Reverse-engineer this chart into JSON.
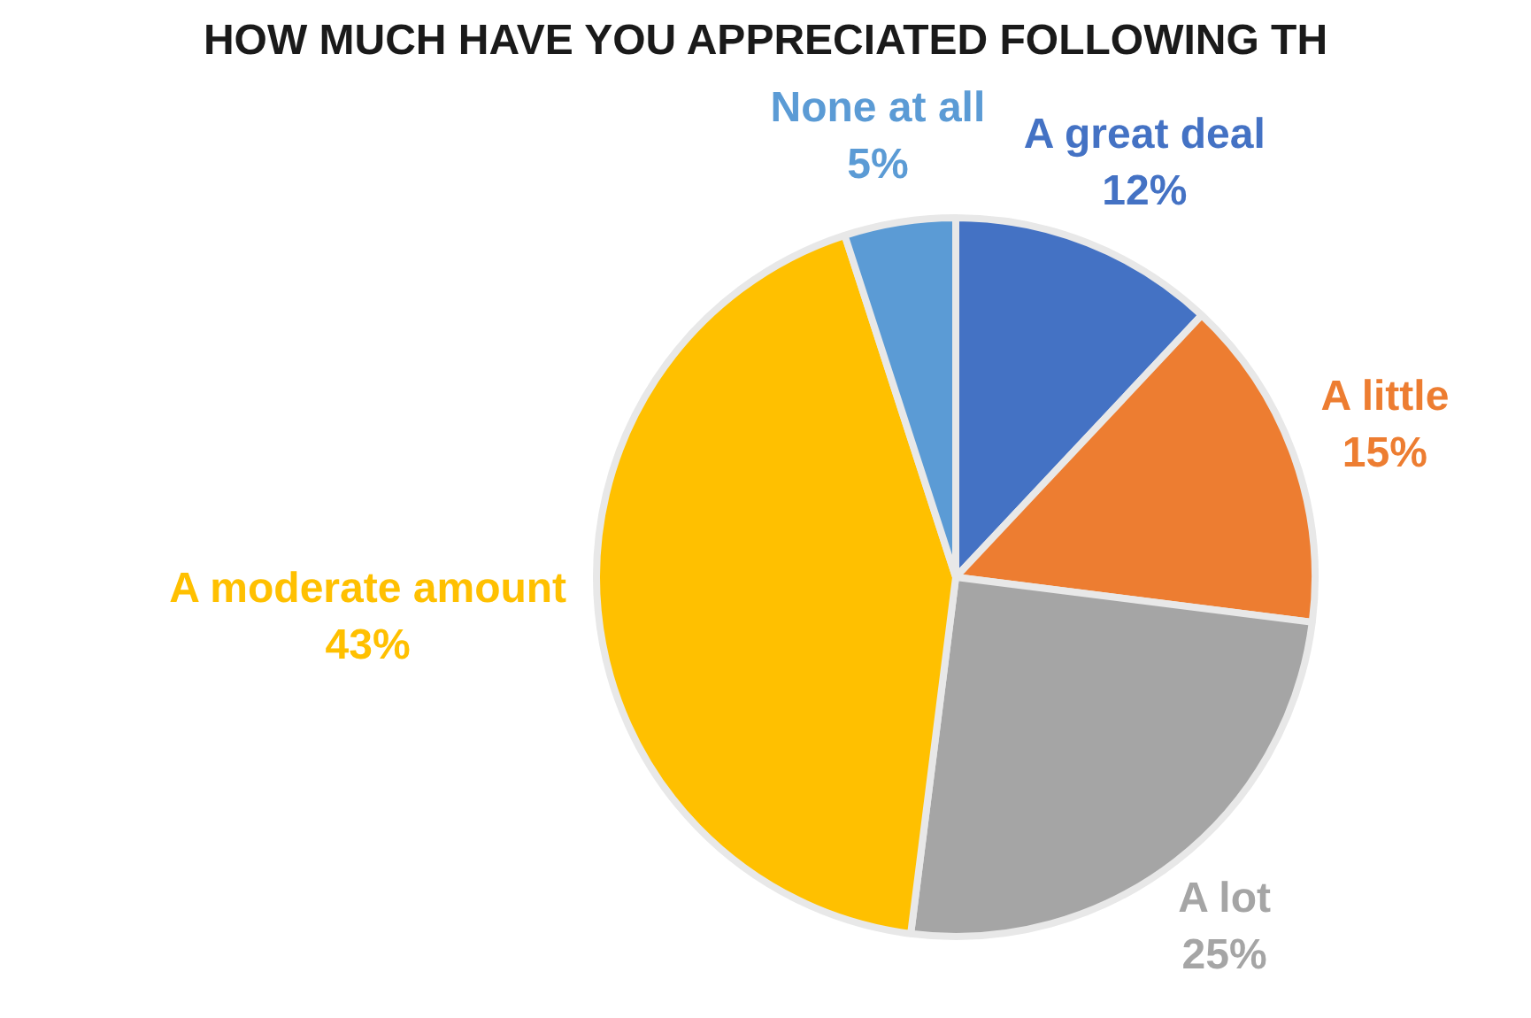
{
  "chart_data": {
    "type": "pie",
    "title": "HOW MUCH HAVE YOU APPRECIATED FOLLOWING TH",
    "categories": [
      "A great deal",
      "A little",
      "A lot",
      "A moderate amount",
      "None at all"
    ],
    "values": [
      12,
      15,
      25,
      43,
      5
    ],
    "colors": [
      "#4472c4",
      "#ed7d31",
      "#a5a5a5",
      "#ffc000",
      "#5b9bd5"
    ],
    "value_labels": [
      "12%",
      "15%",
      "25%",
      "43%",
      "5%"
    ],
    "legend": false
  }
}
